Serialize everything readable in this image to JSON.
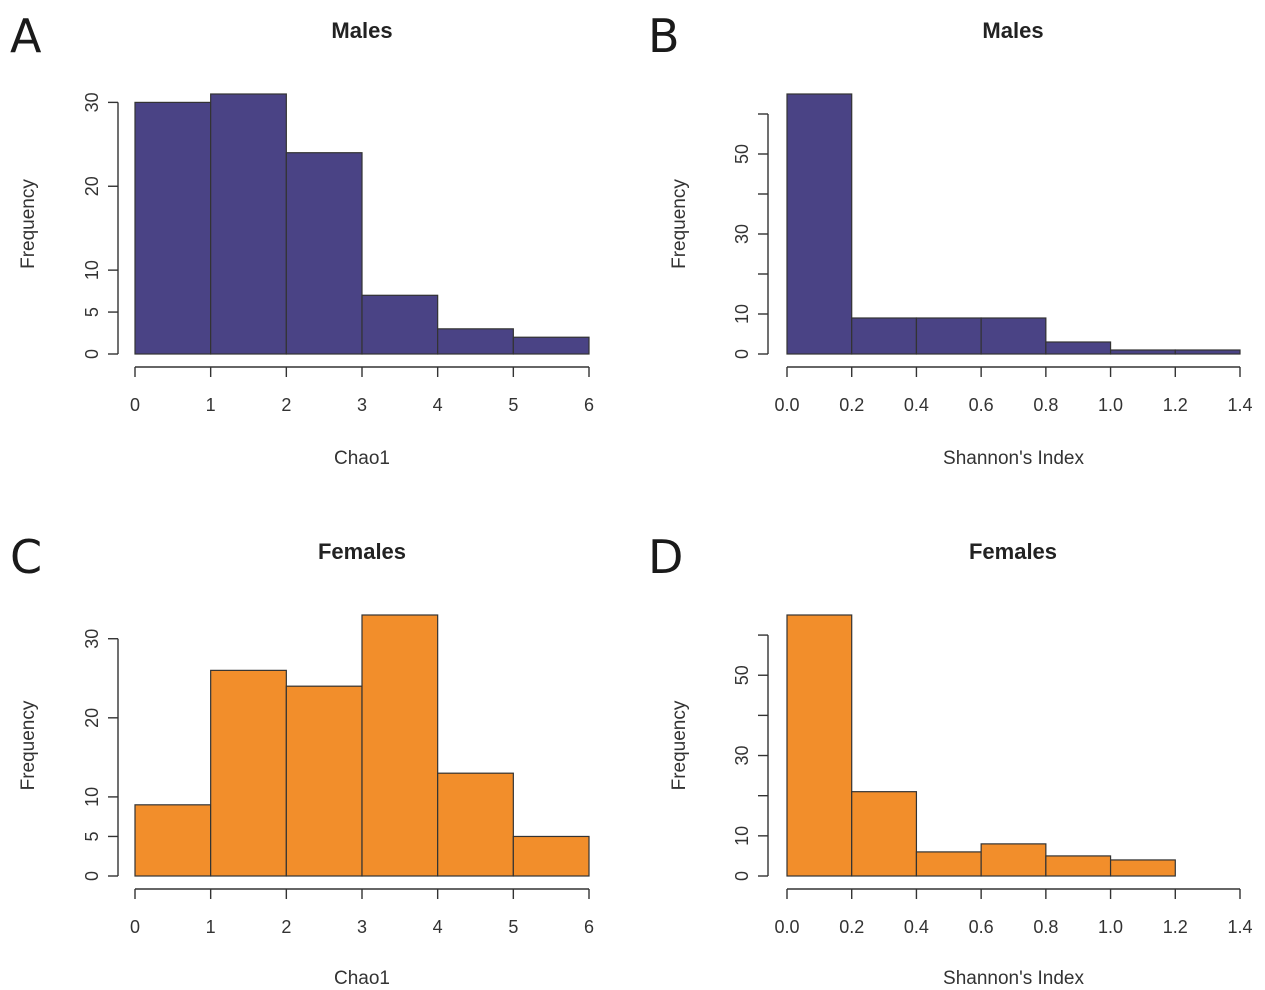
{
  "chart_data": [
    {
      "panel": "A",
      "type": "bar",
      "subtype": "histogram",
      "title": "Males",
      "xlabel": "Chao1",
      "ylabel": "Frequency",
      "bins": [
        [
          0,
          1
        ],
        [
          1,
          2
        ],
        [
          2,
          3
        ],
        [
          3,
          4
        ],
        [
          4,
          5
        ],
        [
          5,
          6
        ]
      ],
      "values": [
        30,
        31,
        24,
        7,
        3,
        2
      ],
      "xlim": [
        0,
        6
      ],
      "ylim": [
        0,
        31
      ],
      "xticks": [
        "0",
        "1",
        "2",
        "3",
        "4",
        "5",
        "6"
      ],
      "yticks": [
        0,
        5,
        10,
        20,
        30
      ],
      "color": "#4a4385",
      "grid": false
    },
    {
      "panel": "B",
      "type": "bar",
      "subtype": "histogram",
      "title": "Males",
      "xlabel": "Shannon's Index",
      "ylabel": "Frequency",
      "bins": [
        [
          0.0,
          0.2
        ],
        [
          0.2,
          0.4
        ],
        [
          0.4,
          0.6
        ],
        [
          0.6,
          0.8
        ],
        [
          0.8,
          1.0
        ],
        [
          1.0,
          1.2
        ],
        [
          1.2,
          1.4
        ]
      ],
      "values": [
        65,
        9,
        9,
        9,
        3,
        1,
        1
      ],
      "xlim": [
        0,
        1.4
      ],
      "ylim": [
        0,
        65
      ],
      "xticks": [
        "0.0",
        "0.2",
        "0.4",
        "0.6",
        "0.8",
        "1.0",
        "1.2",
        "1.4"
      ],
      "yticks": [
        0,
        10,
        30,
        50
      ],
      "yminor": [
        20,
        40,
        60
      ],
      "color": "#4a4385",
      "grid": false
    },
    {
      "panel": "C",
      "type": "bar",
      "subtype": "histogram",
      "title": "Females",
      "xlabel": "Chao1",
      "ylabel": "Frequency",
      "bins": [
        [
          0,
          1
        ],
        [
          1,
          2
        ],
        [
          2,
          3
        ],
        [
          3,
          4
        ],
        [
          4,
          5
        ],
        [
          5,
          6
        ]
      ],
      "values": [
        9,
        26,
        24,
        33,
        13,
        5
      ],
      "xlim": [
        0,
        6
      ],
      "ylim": [
        0,
        33
      ],
      "xticks": [
        "0",
        "1",
        "2",
        "3",
        "4",
        "5",
        "6"
      ],
      "yticks": [
        0,
        5,
        10,
        20,
        30
      ],
      "color": "#f28e2b",
      "grid": false
    },
    {
      "panel": "D",
      "type": "bar",
      "subtype": "histogram",
      "title": "Females",
      "xlabel": "Shannon's Index",
      "ylabel": "Frequency",
      "bins": [
        [
          0.0,
          0.2
        ],
        [
          0.2,
          0.4
        ],
        [
          0.4,
          0.6
        ],
        [
          0.6,
          0.8
        ],
        [
          0.8,
          1.0
        ],
        [
          1.0,
          1.2
        ]
      ],
      "values": [
        65,
        21,
        6,
        8,
        5,
        4
      ],
      "xlim": [
        0,
        1.4
      ],
      "ylim": [
        0,
        65
      ],
      "xticks": [
        "0.0",
        "0.2",
        "0.4",
        "0.6",
        "0.8",
        "1.0",
        "1.2",
        "1.4"
      ],
      "yticks": [
        0,
        10,
        30,
        50
      ],
      "yminor": [
        20,
        40,
        60
      ],
      "color": "#f28e2b",
      "grid": false
    }
  ]
}
